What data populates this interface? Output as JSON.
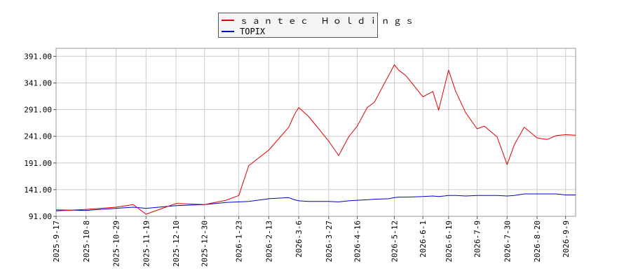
{
  "chart_data": {
    "type": "line",
    "title": "",
    "xlabel": "",
    "ylabel": "",
    "ylim": [
      91,
      406
    ],
    "grid": true,
    "legend_position": "top-center",
    "y_ticks": [
      91,
      141,
      191,
      241,
      291,
      341,
      391
    ],
    "y_tick_labels": [
      "91.00",
      "141.00",
      "191.00",
      "241.00",
      "291.00",
      "341.00",
      "391.00"
    ],
    "x_tick_labels": [
      "2025-9-17",
      "2025-10-8",
      "2025-10-29",
      "2025-11-19",
      "2025-12-10",
      "2025-12-30",
      "2026-1-23",
      "2026-2-13",
      "2026-3-6",
      "2026-3-27",
      "2026-4-16",
      "2026-5-12",
      "2026-6-1",
      "2026-6-19",
      "2026-7-9",
      "2026-7-30",
      "2026-8-20",
      "2026-9-9"
    ],
    "x": [
      "2025-09-17",
      "2025-10-08",
      "2025-10-29",
      "2025-11-10",
      "2025-11-19",
      "2025-12-10",
      "2025-12-30",
      "2026-01-14",
      "2026-01-23",
      "2026-01-30",
      "2026-02-13",
      "2026-02-27",
      "2026-03-03",
      "2026-03-06",
      "2026-03-13",
      "2026-03-27",
      "2026-04-03",
      "2026-04-10",
      "2026-04-16",
      "2026-04-23",
      "2026-04-28",
      "2026-05-08",
      "2026-05-12",
      "2026-05-15",
      "2026-05-20",
      "2026-06-01",
      "2026-06-08",
      "2026-06-12",
      "2026-06-19",
      "2026-06-24",
      "2026-07-01",
      "2026-07-09",
      "2026-07-14",
      "2026-07-23",
      "2026-07-30",
      "2026-08-04",
      "2026-08-11",
      "2026-08-20",
      "2026-08-27",
      "2026-09-02",
      "2026-09-09",
      "2026-09-16"
    ],
    "series": [
      {
        "name": "ｓａｎｔｅｃ Ｈｏｌｄｉｎｇｓ",
        "color": "#dd0000",
        "values": [
          101,
          104,
          108,
          113,
          95,
          115,
          113,
          121,
          130,
          186,
          215,
          258,
          282,
          295,
          278,
          232,
          205,
          240,
          260,
          295,
          305,
          355,
          375,
          365,
          355,
          315,
          325,
          290,
          365,
          325,
          285,
          255,
          260,
          240,
          188,
          225,
          258,
          238,
          235,
          242,
          244,
          243
        ]
      },
      {
        "name": "TOPIX",
        "color": "#0000cc",
        "values": [
          103,
          102,
          106,
          108,
          106,
          111,
          113,
          117,
          118,
          119,
          124,
          126,
          122,
          120,
          119,
          119,
          118,
          120,
          121,
          122,
          123,
          124,
          126,
          127,
          127,
          128,
          129,
          128,
          130,
          130,
          129,
          130,
          130,
          130,
          129,
          130,
          133,
          133,
          133,
          133,
          131,
          131
        ]
      }
    ]
  }
}
